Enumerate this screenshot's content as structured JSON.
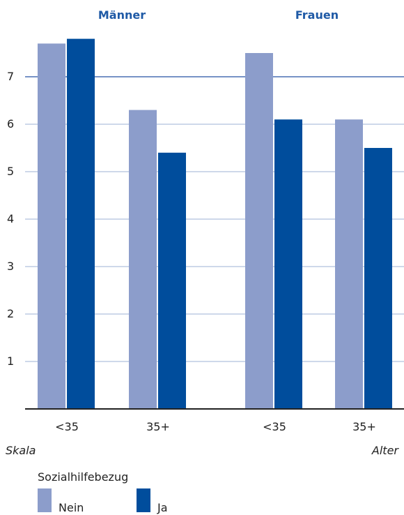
{
  "chart_data": {
    "type": "bar",
    "groups": [
      {
        "title": "Männer",
        "categories": [
          "<35",
          "35+"
        ]
      },
      {
        "title": "Frauen",
        "categories": [
          "<35",
          "35+"
        ]
      }
    ],
    "categories": [
      "<35",
      "35+",
      "<35",
      "35+"
    ],
    "series": [
      {
        "name": "Nein",
        "color": "#8c9dcb",
        "values": [
          7.7,
          6.3,
          7.5,
          6.1
        ]
      },
      {
        "name": "Ja",
        "color": "#004d9c",
        "values": [
          7.8,
          5.4,
          6.1,
          5.5
        ]
      }
    ],
    "xlabel": "Alter",
    "ylabel": "Skala",
    "ylim": [
      0,
      8
    ],
    "yticks": [
      1,
      2,
      3,
      4,
      5,
      6,
      7
    ],
    "grid": true,
    "legend": {
      "title": "Sozialhilfebezug",
      "position": "bottom-left"
    },
    "colors": {
      "grid": "#4a6fb3",
      "title": "#1f5aa6",
      "axis": "#222222"
    }
  }
}
